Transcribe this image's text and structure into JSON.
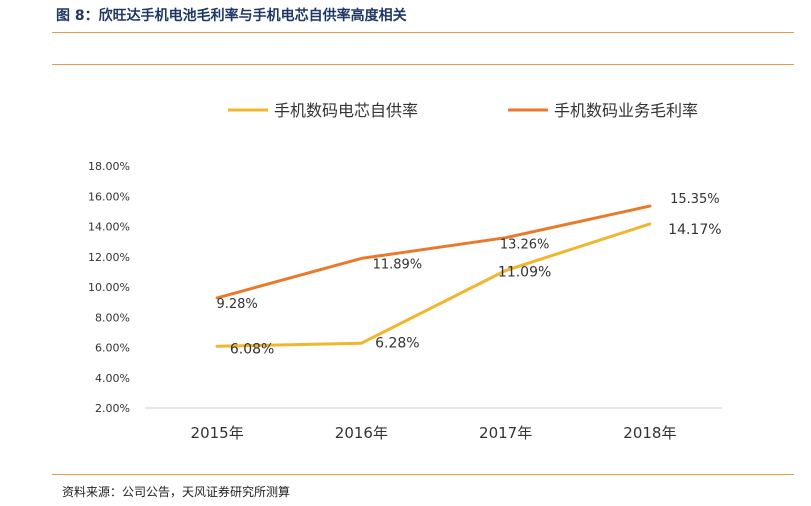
{
  "figure": {
    "title": "图 8：欣旺达手机电池毛利率与手机电芯自供率高度相关",
    "source": "资料来源：公司公告，天风证券研究所测算"
  },
  "chart_data": {
    "type": "line",
    "categories": [
      "2015年",
      "2016年",
      "2017年",
      "2018年"
    ],
    "series": [
      {
        "name": "手机数码电芯自供率",
        "color": "#f2b52f",
        "values": [
          6.08,
          6.28,
          11.09,
          14.17
        ],
        "labels": [
          "6.08%",
          "6.28%",
          "11.09%",
          "14.17%"
        ]
      },
      {
        "name": "手机数码业务毛利率",
        "color": "#e97a2c",
        "values": [
          9.28,
          11.89,
          13.26,
          15.35
        ],
        "labels": [
          "9.28%",
          "11.89%",
          "13.26%",
          "15.35%"
        ]
      }
    ],
    "y_ticks": [
      "2.00%",
      "4.00%",
      "6.00%",
      "8.00%",
      "10.00%",
      "12.00%",
      "14.00%",
      "16.00%",
      "18.00%"
    ],
    "ylim": [
      2,
      18
    ],
    "legend_position": "top",
    "grid": false
  }
}
